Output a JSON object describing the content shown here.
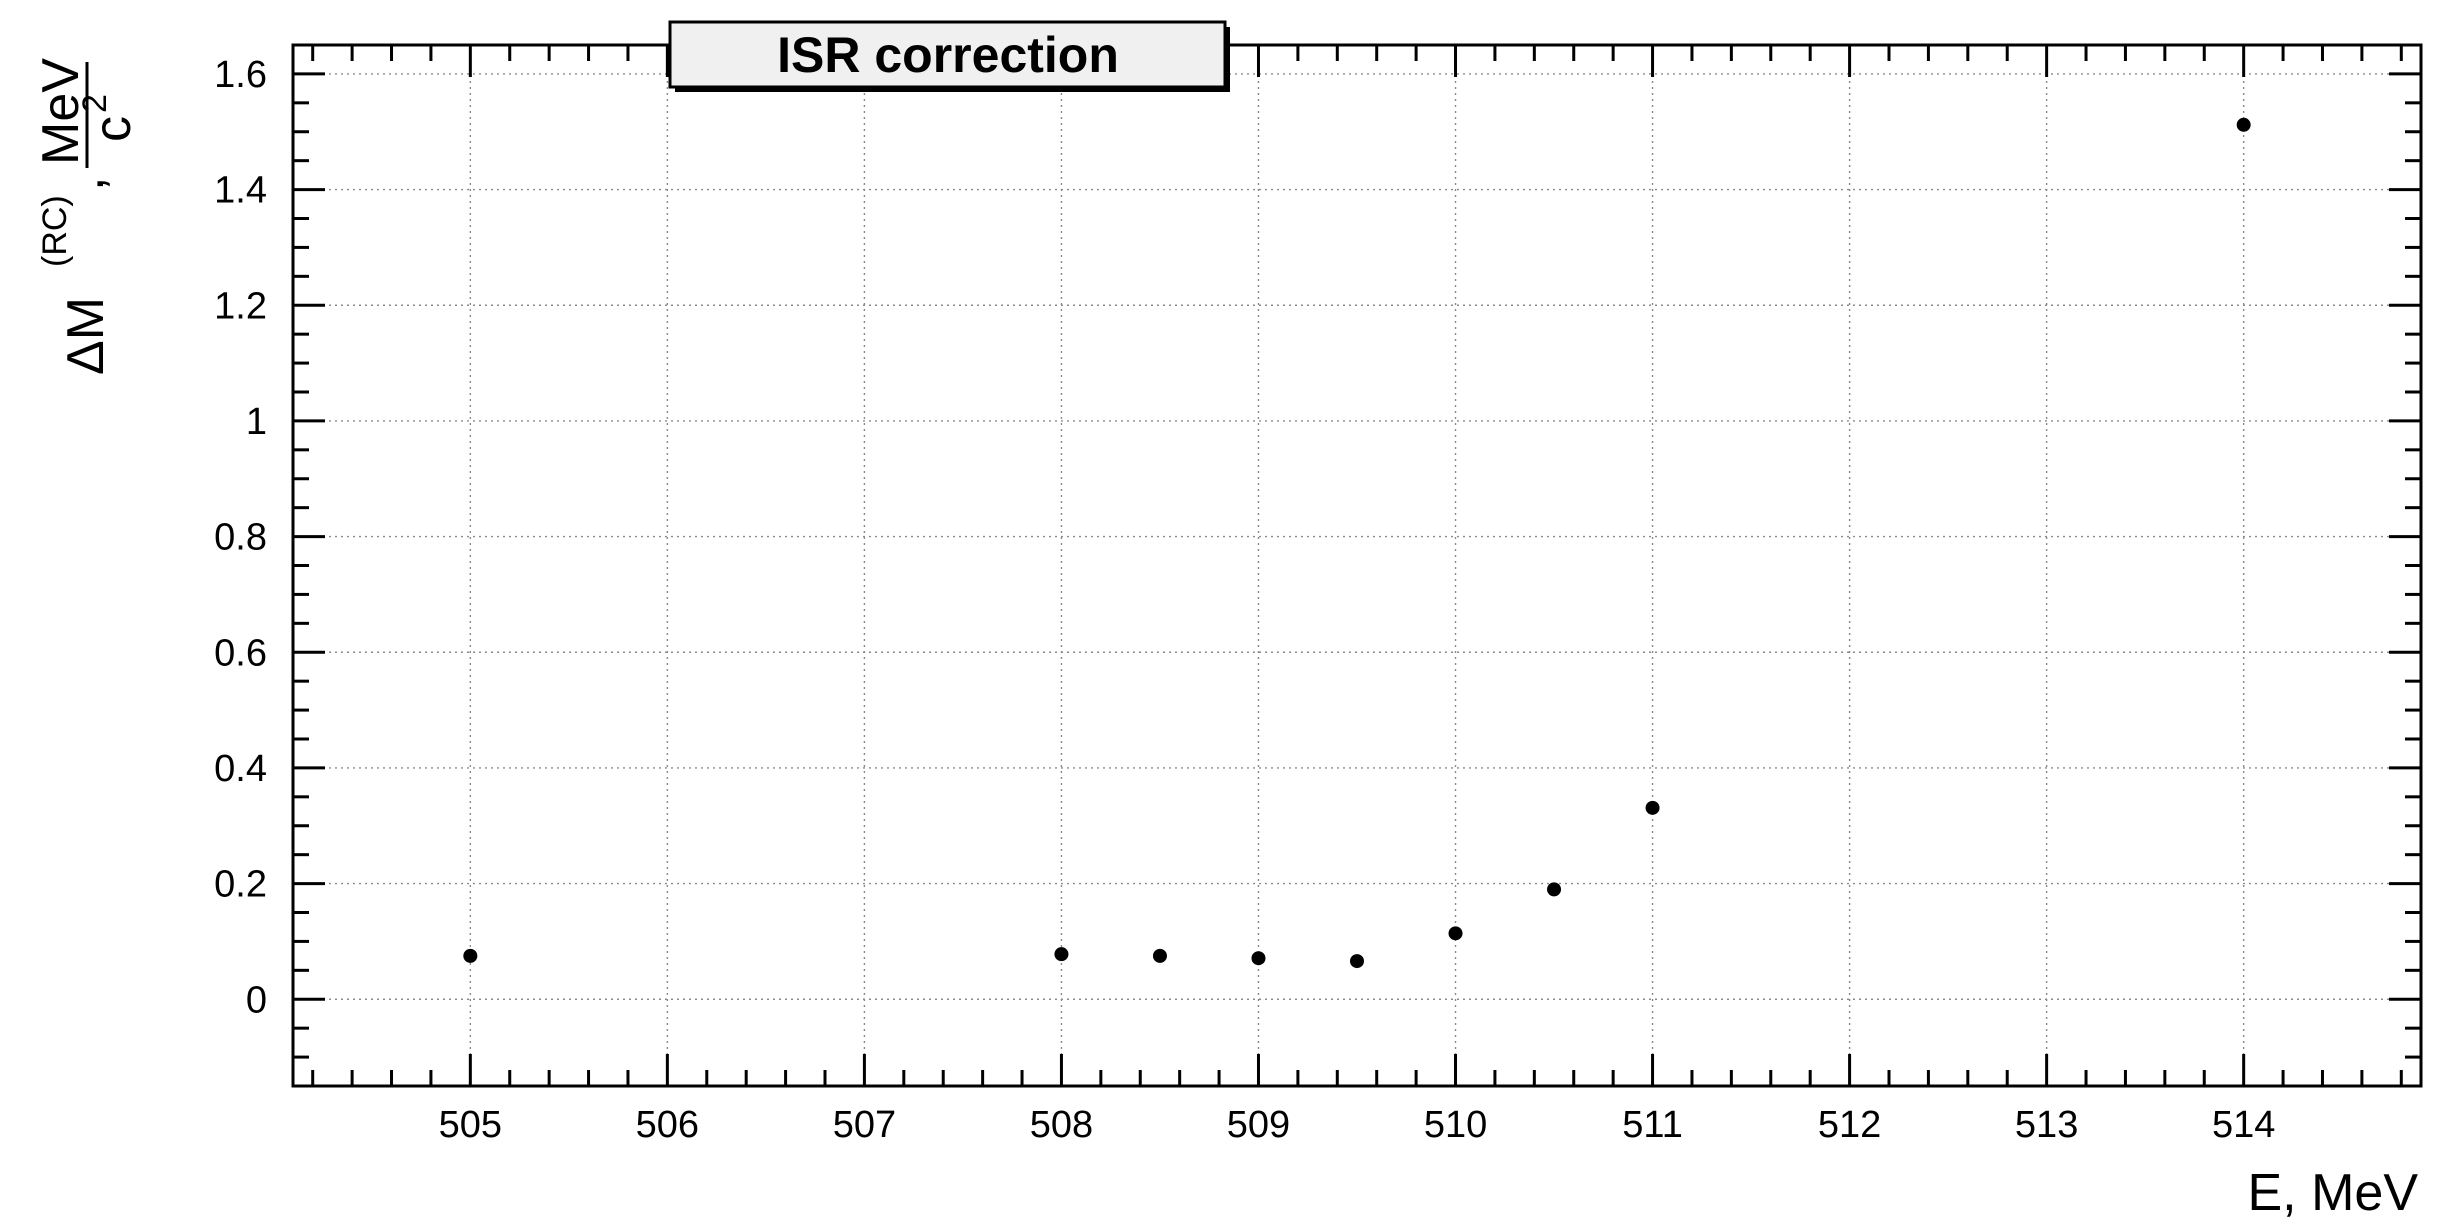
{
  "chart_data": {
    "type": "scatter",
    "title": "ISR correction",
    "xlabel": "E, MeV",
    "ylabel": {
      "symbol": "ΔM",
      "superscript": "(RC)",
      "separator": ",",
      "unit_numerator": "MeV",
      "unit_denominator": "c",
      "unit_denominator_power": "2"
    },
    "xlim": [
      504.1,
      514.9
    ],
    "ylim": [
      -0.15,
      1.65
    ],
    "x_ticks": [
      505,
      506,
      507,
      508,
      509,
      510,
      511,
      512,
      513,
      514
    ],
    "x_tick_labels": [
      "505",
      "506",
      "507",
      "508",
      "509",
      "510",
      "511",
      "512",
      "513",
      "514"
    ],
    "y_ticks": [
      0,
      0.2,
      0.4,
      0.6,
      0.8,
      1,
      1.2,
      1.4,
      1.6
    ],
    "y_tick_labels": [
      "0",
      "0.2",
      "0.4",
      "0.6",
      "0.8",
      "1",
      "1.2",
      "1.4",
      "1.6"
    ],
    "grid": true,
    "legend": "none",
    "marker_color": "#000000",
    "points": [
      {
        "x": 505.0,
        "y": 0.075
      },
      {
        "x": 508.0,
        "y": 0.078
      },
      {
        "x": 508.5,
        "y": 0.075
      },
      {
        "x": 509.0,
        "y": 0.071
      },
      {
        "x": 509.5,
        "y": 0.066
      },
      {
        "x": 510.0,
        "y": 0.114
      },
      {
        "x": 510.5,
        "y": 0.19
      },
      {
        "x": 511.0,
        "y": 0.331
      },
      {
        "x": 514.0,
        "y": 1.512
      }
    ]
  }
}
